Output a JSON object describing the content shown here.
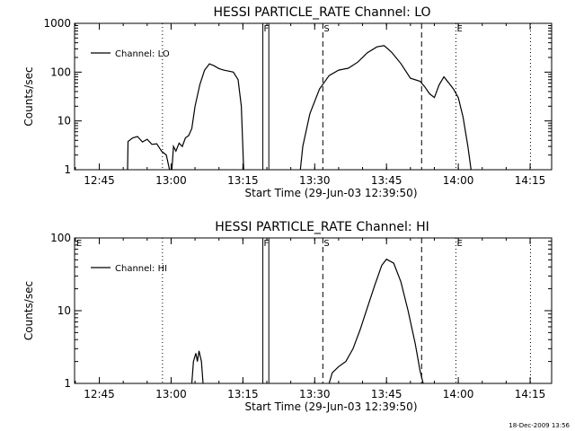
{
  "footer_text": "18-Dec-2009 13:56",
  "chart_data": [
    {
      "type": "line",
      "title": "HESSI PARTICLE_RATE Channel: LO",
      "xlabel": "Start Time (29-Jun-03 12:39:50)",
      "ylabel": "Counts/sec",
      "yscale": "log",
      "xlim": [
        "12:39:50",
        "14:19:30"
      ],
      "ylim": [
        1,
        1000
      ],
      "xticks": [
        "12:45",
        "13:00",
        "13:15",
        "13:30",
        "13:45",
        "14:00",
        "14:15"
      ],
      "yticks": [
        "1",
        "10",
        "100",
        "1000"
      ],
      "grid": false,
      "legend": {
        "position": "top-left",
        "entries": [
          "Channel: LO"
        ]
      },
      "markers": [
        {
          "time": "12:58:12",
          "label": "",
          "style": "dotted"
        },
        {
          "time": "13:19:10",
          "label": "F",
          "style": "solid"
        },
        {
          "time": "13:20:25",
          "label": "",
          "style": "solid"
        },
        {
          "time": "13:31:42",
          "label": "S",
          "style": "dashed"
        },
        {
          "time": "13:52:20",
          "label": "",
          "style": "dashed"
        },
        {
          "time": "13:59:30",
          "label": "E",
          "style": "dotted"
        },
        {
          "time": "14:15:05",
          "label": "",
          "style": "dotted"
        }
      ],
      "series": [
        {
          "name": "Channel: LO",
          "segments": [
            [
              [
                "12:50:55",
                1
              ],
              [
                "12:51:00",
                3.8
              ],
              [
                "12:52:00",
                4.5
              ],
              [
                "12:53:00",
                4.8
              ],
              [
                "12:54:00",
                3.7
              ],
              [
                "12:55:00",
                4.2
              ],
              [
                "12:56:00",
                3.3
              ],
              [
                "12:57:00",
                3.4
              ],
              [
                "12:58:00",
                2.4
              ],
              [
                "12:59:00",
                2.0
              ],
              [
                "12:59:40",
                1
              ]
            ],
            [
              [
                "13:00:10",
                1
              ],
              [
                "13:00:30",
                3.0
              ],
              [
                "13:01:00",
                2.4
              ],
              [
                "13:01:40",
                3.5
              ],
              [
                "13:02:20",
                3.0
              ],
              [
                "13:03:00",
                4.5
              ],
              [
                "13:03:40",
                5.0
              ],
              [
                "13:04:20",
                7.0
              ],
              [
                "13:05:00",
                20
              ],
              [
                "13:06:00",
                55
              ],
              [
                "13:07:00",
                110
              ],
              [
                "13:08:00",
                148
              ],
              [
                "13:09:00",
                135
              ],
              [
                "13:10:00",
                118
              ],
              [
                "13:11:00",
                110
              ],
              [
                "13:12:00",
                105
              ],
              [
                "13:13:00",
                100
              ],
              [
                "13:14:00",
                70
              ],
              [
                "13:14:40",
                20
              ],
              [
                "13:15:10",
                1
              ]
            ],
            [
              [
                "13:27:00",
                1
              ],
              [
                "13:27:30",
                3.0
              ],
              [
                "13:29:00",
                14
              ],
              [
                "13:31:00",
                45
              ],
              [
                "13:33:00",
                85
              ],
              [
                "13:35:00",
                110
              ],
              [
                "13:37:00",
                120
              ],
              [
                "13:39:00",
                160
              ],
              [
                "13:41:00",
                250
              ],
              [
                "13:43:00",
                330
              ],
              [
                "13:44:30",
                350
              ],
              [
                "13:46:00",
                260
              ],
              [
                "13:48:00",
                150
              ],
              [
                "13:50:00",
                75
              ],
              [
                "13:52:00",
                65
              ],
              [
                "13:53:00",
                50
              ],
              [
                "13:54:00",
                36
              ],
              [
                "13:55:00",
                30
              ],
              [
                "13:56:00",
                55
              ],
              [
                "13:57:00",
                80
              ],
              [
                "13:58:00",
                60
              ],
              [
                "13:59:00",
                45
              ],
              [
                "14:00:00",
                30
              ],
              [
                "14:01:00",
                12
              ],
              [
                "14:02:00",
                3
              ],
              [
                "14:02:40",
                1
              ]
            ]
          ]
        }
      ]
    },
    {
      "type": "line",
      "title": "HESSI PARTICLE_RATE Channel: HI",
      "xlabel": "Start Time (29-Jun-03 12:39:50)",
      "ylabel": "Counts/sec",
      "yscale": "log",
      "xlim": [
        "12:39:50",
        "14:19:30"
      ],
      "ylim": [
        1,
        100
      ],
      "xticks": [
        "12:45",
        "13:00",
        "13:15",
        "13:30",
        "13:45",
        "14:00",
        "14:15"
      ],
      "yticks": [
        "1",
        "10",
        "100"
      ],
      "grid": false,
      "legend": {
        "position": "top-left",
        "entries": [
          "Channel: HI"
        ]
      },
      "markers": [
        {
          "time": "12:40:00",
          "label": "E",
          "style": "none"
        },
        {
          "time": "12:58:12",
          "label": "",
          "style": "dotted"
        },
        {
          "time": "13:19:10",
          "label": "F",
          "style": "solid"
        },
        {
          "time": "13:20:25",
          "label": "",
          "style": "solid"
        },
        {
          "time": "13:31:42",
          "label": "S",
          "style": "dashed"
        },
        {
          "time": "13:52:20",
          "label": "",
          "style": "dashed"
        },
        {
          "time": "13:59:30",
          "label": "E",
          "style": "dotted"
        },
        {
          "time": "14:15:05",
          "label": "",
          "style": "dotted"
        }
      ],
      "series": [
        {
          "name": "Channel: HI",
          "segments": [
            [
              [
                "13:04:20",
                1
              ],
              [
                "13:04:40",
                2.0
              ],
              [
                "13:05:10",
                2.6
              ],
              [
                "13:05:30",
                2.0
              ],
              [
                "13:05:50",
                2.8
              ],
              [
                "13:06:20",
                2.0
              ],
              [
                "13:06:40",
                1
              ]
            ],
            [
              [
                "13:33:00",
                1
              ],
              [
                "13:33:40",
                1.4
              ],
              [
                "13:35:00",
                1.7
              ],
              [
                "13:36:30",
                2.0
              ],
              [
                "13:38:00",
                3.0
              ],
              [
                "13:39:30",
                5.5
              ],
              [
                "13:41:00",
                11
              ],
              [
                "13:42:30",
                22
              ],
              [
                "13:44:00",
                42
              ],
              [
                "13:45:00",
                51
              ],
              [
                "13:46:30",
                45
              ],
              [
                "13:48:00",
                25
              ],
              [
                "13:49:30",
                10
              ],
              [
                "13:51:00",
                3.5
              ],
              [
                "13:52:00",
                1.5
              ],
              [
                "13:52:40",
                1
              ]
            ]
          ]
        }
      ]
    }
  ]
}
